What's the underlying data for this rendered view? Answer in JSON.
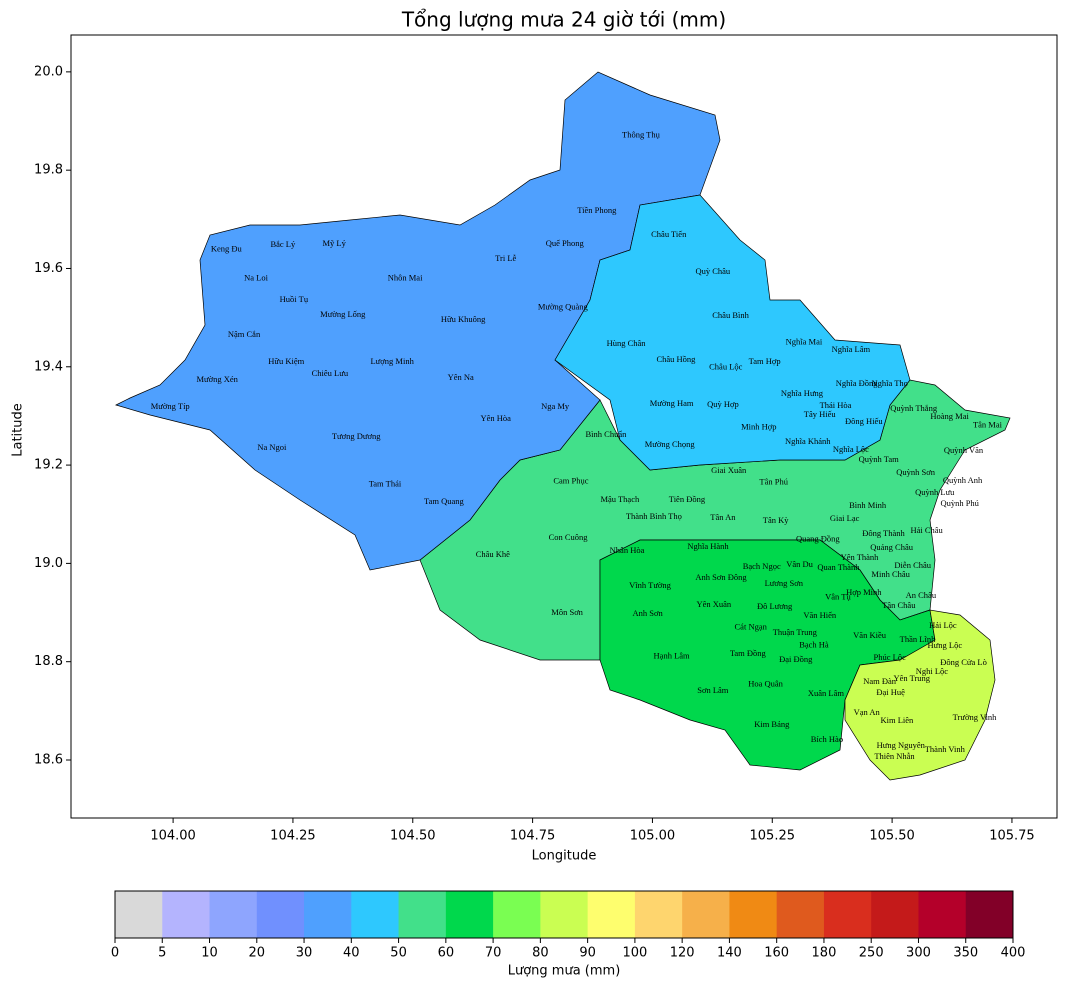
{
  "chart_data": {
    "type": "map",
    "title": "Tổng lượng mưa 24 giờ tới (mm)",
    "xlabel": "Longitude",
    "ylabel": "Latitude",
    "xlim": [
      103.787,
      105.844
    ],
    "ylim": [
      18.482,
      20.075
    ],
    "xticks": [
      {
        "value": 104.0,
        "label": "104.00"
      },
      {
        "value": 104.25,
        "label": "104.25"
      },
      {
        "value": 104.5,
        "label": "104.50"
      },
      {
        "value": 104.75,
        "label": "104.75"
      },
      {
        "value": 105.0,
        "label": "105.00"
      },
      {
        "value": 105.25,
        "label": "105.25"
      },
      {
        "value": 105.5,
        "label": "105.50"
      },
      {
        "value": 105.75,
        "label": "105.75"
      }
    ],
    "yticks": [
      {
        "value": 18.6,
        "label": "18.6"
      },
      {
        "value": 18.8,
        "label": "18.8"
      },
      {
        "value": 19.0,
        "label": "19.0"
      },
      {
        "value": 19.2,
        "label": "19.2"
      },
      {
        "value": 19.4,
        "label": "19.4"
      },
      {
        "value": 19.6,
        "label": "19.6"
      },
      {
        "value": 19.8,
        "label": "19.8"
      },
      {
        "value": 20.0,
        "label": "20.0"
      }
    ],
    "labels": {
      "names": [
        "Thông Thụ",
        "Tiền Phong",
        "Châu Tiến",
        "Quỳ Châu",
        "Quế Phong",
        "Tri Lễ",
        "Keng Đu",
        "Bắc Lý",
        "Mỹ Lý",
        "Na Loi",
        "Nhôn Mai",
        "Huồi Tụ",
        "Mường Lống",
        "Hữu Khuông",
        "Mường Quàng",
        "Châu Bình",
        "Nậm Cắn",
        "Hữu Kiệm",
        "Lượng Minh",
        "Chiêu Lưu",
        "Yên Na",
        "Hùng Chân",
        "Châu Hồng",
        "Châu Lộc",
        "Tam Hợp",
        "Nghĩa Mai",
        "Nghĩa Lâm",
        "Mường Xén",
        "Mường Típ",
        "Nghĩa Đồng",
        "Nghĩa Thọ",
        "Nghĩa Hưng",
        "Mường Ham",
        "Quỳ Hợp",
        "Thái Hòa",
        "Tây Hiếu",
        "Quỳnh Thắng",
        "Hoàng Mai",
        "Tân Mai",
        "Yên Hòa",
        "Nga My",
        "Minh Hợp",
        "Đông Hiếu",
        "Na Ngoi",
        "Tương Dương",
        "Bình Chuẩn",
        "Mường Chọng",
        "Nghĩa Khánh",
        "Nghĩa Lộc",
        "Quỳnh Văn",
        "Quỳnh Tam",
        "Giai Xuân",
        "Quỳnh Sơn",
        "Tam Thái",
        "Cam Phục",
        "Tân Phú",
        "Quỳnh Anh",
        "Mậu Thạch",
        "Tiên Đồng",
        "Tam Quang",
        "Bình Minh",
        "Quỳnh Lưu",
        "Quỳnh Phú",
        "Thành Bình Thọ",
        "Tân An",
        "Tân Kỳ",
        "Giai Lạc",
        "Hải Châu",
        "Con Cuông",
        "Quang Đồng",
        "Đông Thành",
        "Nhân Hòa",
        "Nghĩa Hành",
        "Châu Khê",
        "Quảng Châu",
        "Yên Thành",
        "Bạch Ngọc",
        "Vân Du",
        "Quan Thành",
        "Diễn Châu",
        "Minh Châu",
        "Vĩnh Tường",
        "Anh Sơn Đông",
        "Lương Sơn",
        "Hợp Minh",
        "Vân Tụ",
        "An Châu",
        "Yên Xuân",
        "Đô Lương",
        "Tân Châu",
        "Anh Sơn",
        "Môn Sơn",
        "Văn Hiến",
        "Cát Ngạn",
        "Thuận Trung",
        "Văn Kiều",
        "Hải Lộc",
        "Bạch Hà",
        "Thần Lĩnh",
        "Hưng Lộc",
        "Tam Đồng",
        "Hạnh Lâm",
        "Đại Đồng",
        "Phúc Lộc",
        "Đông Cửa Lò",
        "Nghi Lộc",
        "Nam Đàn",
        "Yên Trung",
        "Hoa Quân",
        "Sơn Lâm",
        "Xuân Lâm",
        "Đại Huệ",
        "Vạn An",
        "Kim Liên",
        "Kim Bảng",
        "Bích Hào",
        "Hưng Nguyên",
        "Thiên Nhẫn",
        "Trường Vinh",
        "Thành Vinh"
      ],
      "lon": [
        104.976,
        104.884,
        105.034,
        105.126,
        104.817,
        104.694,
        104.111,
        104.229,
        104.336,
        104.173,
        104.484,
        104.252,
        104.354,
        104.605,
        104.813,
        105.163,
        104.148,
        104.236,
        104.457,
        104.327,
        104.6,
        104.945,
        105.049,
        105.153,
        105.234,
        105.316,
        105.414,
        104.092,
        103.994,
        105.426,
        105.495,
        105.312,
        105.04,
        105.147,
        105.382,
        105.349,
        105.545,
        105.62,
        105.699,
        104.673,
        104.797,
        105.222,
        105.441,
        104.206,
        104.382,
        104.903,
        105.036,
        105.324,
        105.414,
        105.649,
        105.472,
        105.159,
        105.549,
        104.442,
        104.83,
        105.253,
        105.647,
        104.932,
        105.072,
        104.565,
        105.449,
        105.589,
        105.641,
        105.003,
        105.147,
        105.257,
        105.401,
        105.572,
        104.824,
        105.345,
        105.482,
        104.947,
        105.116,
        104.667,
        105.499,
        105.432,
        105.228,
        105.307,
        105.388,
        105.543,
        105.497,
        104.995,
        105.143,
        105.274,
        105.441,
        105.387,
        105.56,
        105.128,
        105.255,
        105.514,
        104.99,
        104.822,
        105.349,
        105.205,
        105.297,
        105.453,
        105.606,
        105.337,
        105.553,
        105.61,
        105.199,
        105.04,
        105.299,
        105.495,
        105.649,
        105.583,
        105.474,
        105.541,
        105.236,
        105.126,
        105.362,
        105.497,
        105.447,
        105.51,
        105.249,
        105.364,
        105.518,
        105.505,
        105.672,
        105.61
      ],
      "lat": [
        19.87,
        19.717,
        19.668,
        19.593,
        19.65,
        19.619,
        19.638,
        19.648,
        19.65,
        19.579,
        19.579,
        19.536,
        19.505,
        19.495,
        19.52,
        19.503,
        19.465,
        19.41,
        19.41,
        19.385,
        19.377,
        19.446,
        19.414,
        19.398,
        19.41,
        19.449,
        19.434,
        19.373,
        19.318,
        19.365,
        19.365,
        19.345,
        19.324,
        19.322,
        19.32,
        19.302,
        19.314,
        19.298,
        19.28,
        19.294,
        19.318,
        19.276,
        19.288,
        19.235,
        19.257,
        19.261,
        19.241,
        19.247,
        19.231,
        19.229,
        19.21,
        19.188,
        19.184,
        19.16,
        19.166,
        19.164,
        19.168,
        19.129,
        19.129,
        19.125,
        19.117,
        19.143,
        19.121,
        19.094,
        19.092,
        19.086,
        19.09,
        19.066,
        19.052,
        19.048,
        19.06,
        19.025,
        19.033,
        19.017,
        19.031,
        19.011,
        18.993,
        18.997,
        18.991,
        18.995,
        18.976,
        18.954,
        18.97,
        18.958,
        18.94,
        18.93,
        18.934,
        18.915,
        18.911,
        18.913,
        18.897,
        18.899,
        18.893,
        18.869,
        18.858,
        18.852,
        18.873,
        18.833,
        18.844,
        18.832,
        18.816,
        18.81,
        18.803,
        18.807,
        18.797,
        18.779,
        18.759,
        18.765,
        18.753,
        18.74,
        18.734,
        18.736,
        18.696,
        18.679,
        18.671,
        18.641,
        18.628,
        18.606,
        18.685,
        18.62
      ]
    },
    "colorbar": {
      "label": "Lượng mưa (mm)",
      "bounds": [
        0,
        5,
        10,
        20,
        30,
        40,
        50,
        60,
        70,
        80,
        90,
        100,
        120,
        140,
        160,
        180,
        250,
        300,
        350,
        400
      ],
      "colors": [
        "#d9d9d9",
        "#b4b4fe",
        "#8ea5fe",
        "#7090fe",
        "#4fa0fe",
        "#2ec8fe",
        "#42e08a",
        "#00d84c",
        "#7afe52",
        "#cafe52",
        "#fefe6e",
        "#fed56e",
        "#f6b04a",
        "#f08a14",
        "#df5a1e",
        "#d92e1e",
        "#c41a1a",
        "#b4002a",
        "#820028"
      ]
    }
  }
}
